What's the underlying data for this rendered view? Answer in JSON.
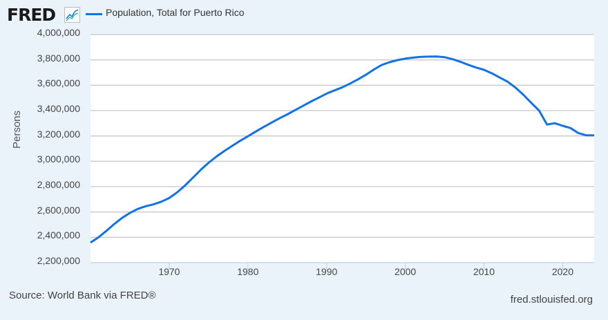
{
  "brand": {
    "logo": "FRED",
    "logo_icon": "line-chart-icon"
  },
  "footer": {
    "source": "Source: World Bank via FRED®",
    "site": "fred.stlouisfed.org"
  },
  "chart_data": {
    "type": "line",
    "title": "",
    "ylabel": "Persons",
    "xlabel": "",
    "xlim": [
      1960,
      2024
    ],
    "ylim": [
      2200000,
      4000000
    ],
    "grid": true,
    "legend": "top-left",
    "yticks": [
      "4,000,000",
      "3,800,000",
      "3,600,000",
      "3,400,000",
      "3,200,000",
      "3,000,000",
      "2,800,000",
      "2,600,000",
      "2,400,000",
      "2,200,000"
    ],
    "ytick_values": [
      4000000,
      3800000,
      3600000,
      3400000,
      3200000,
      3000000,
      2800000,
      2600000,
      2400000,
      2200000
    ],
    "xticks": [
      "1970",
      "1980",
      "1990",
      "2000",
      "2010",
      "2020"
    ],
    "xtick_values": [
      1970,
      1980,
      1990,
      2000,
      2010,
      2020
    ],
    "series": [
      {
        "name": "Population, Total for Puerto Rico",
        "color": "#1072e8",
        "x": [
          1960,
          1961,
          1962,
          1963,
          1964,
          1965,
          1966,
          1967,
          1968,
          1969,
          1970,
          1971,
          1972,
          1973,
          1974,
          1975,
          1976,
          1977,
          1978,
          1979,
          1980,
          1981,
          1982,
          1983,
          1984,
          1985,
          1986,
          1987,
          1988,
          1989,
          1990,
          1991,
          1992,
          1993,
          1994,
          1995,
          1996,
          1997,
          1998,
          1999,
          2000,
          2001,
          2002,
          2003,
          2004,
          2005,
          2006,
          2007,
          2008,
          2009,
          2010,
          2011,
          2012,
          2013,
          2014,
          2015,
          2016,
          2017,
          2018,
          2019,
          2020,
          2021,
          2022,
          2023,
          2024
        ],
        "values": [
          2358000,
          2399000,
          2450000,
          2504000,
          2553000,
          2592000,
          2624000,
          2645000,
          2660000,
          2681000,
          2710000,
          2754000,
          2808000,
          2870000,
          2932000,
          2988000,
          3037000,
          3081000,
          3121000,
          3161000,
          3197000,
          3235000,
          3271000,
          3305000,
          3339000,
          3370000,
          3404000,
          3437000,
          3471000,
          3502000,
          3534000,
          3559000,
          3584000,
          3614000,
          3647000,
          3683000,
          3724000,
          3760000,
          3782000,
          3798000,
          3810000,
          3818000,
          3824000,
          3826000,
          3827000,
          3821000,
          3806000,
          3785000,
          3761000,
          3740000,
          3722000,
          3694000,
          3661000,
          3628000,
          3581000,
          3525000,
          3461000,
          3400000,
          3290000,
          3300000,
          3280000,
          3262000,
          3222000,
          3205000,
          3204000
        ]
      }
    ]
  }
}
